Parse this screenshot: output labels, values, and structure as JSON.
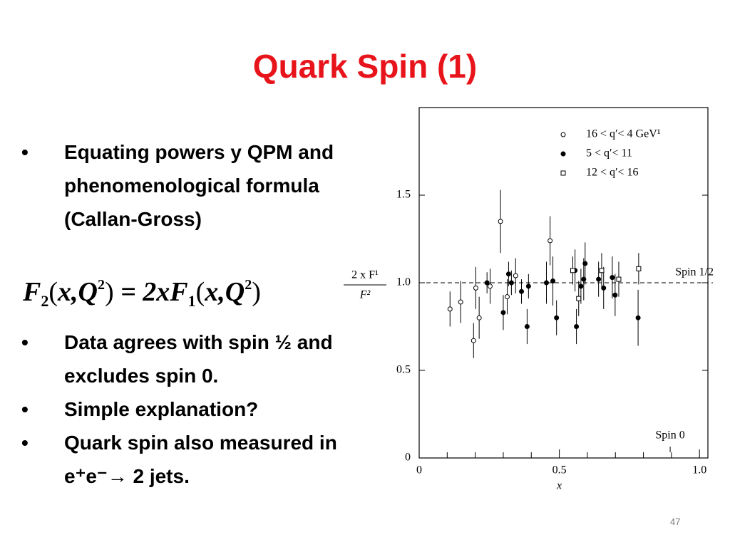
{
  "slide": {
    "title": "Quark Spin (1)",
    "bullets_top": [
      "Equating powers y QPM and phenomenological formula (Callan-Gross)"
    ],
    "formula": [
      {
        "text": "F",
        "style": "normal"
      },
      {
        "text": "2",
        "style": "sub"
      },
      {
        "text": "(",
        "style": "paren"
      },
      {
        "text": "x",
        "style": "normal"
      },
      {
        "text": ",",
        "style": "normal"
      },
      {
        "text": "Q",
        "style": "normal"
      },
      {
        "text": "2",
        "style": "sup"
      },
      {
        "text": ")",
        "style": "paren"
      },
      {
        "text": " = 2",
        "style": "normal"
      },
      {
        "text": "xF",
        "style": "normal"
      },
      {
        "text": "1",
        "style": "sub"
      },
      {
        "text": "(",
        "style": "paren"
      },
      {
        "text": "x",
        "style": "normal"
      },
      {
        "text": ",",
        "style": "normal"
      },
      {
        "text": "Q",
        "style": "normal"
      },
      {
        "text": "2",
        "style": "sup"
      },
      {
        "text": ")",
        "style": "paren"
      }
    ],
    "bullets_bottom": [
      "Data agrees with spin ½ and excludes spin 0.",
      "Simple explanation?",
      "Quark spin also measured in e⁺e⁻→ 2 jets."
    ],
    "page_number": "47"
  },
  "chart_data": {
    "type": "scatter",
    "xlabel": "x",
    "ylabel_top": "2 x F¹",
    "ylabel_bottom": "F²",
    "xlim": [
      0,
      1.03
    ],
    "ylim": [
      0,
      2.0
    ],
    "xticks": [
      0,
      0.5,
      {
        "value": 1.0,
        "label": "1.0"
      }
    ],
    "x_minor_ticks": [
      0.1,
      0.2,
      0.3,
      0.4,
      0.6,
      0.7,
      0.8,
      0.9
    ],
    "yticks": [
      0,
      0.5,
      {
        "value": 1.0,
        "label": "1.0"
      },
      1.5
    ],
    "reference_line": 1.0,
    "annotations": [
      {
        "text": "Spin 1/2",
        "x": 0.87,
        "y": 1.0
      },
      {
        "text": "Spin 0",
        "x": 0.87,
        "y": 0
      }
    ],
    "series": [
      {
        "name": "16 < q′< 4 GeV¹",
        "marker": "open-circle",
        "color": "#000000",
        "x": [
          0.11,
          0.148,
          0.194,
          0.202,
          0.214,
          0.253,
          0.29,
          0.314,
          0.344,
          0.467
        ],
        "values": [
          0.85,
          0.89,
          0.67,
          0.97,
          0.8,
          0.98,
          1.35,
          0.92,
          1.04,
          1.24
        ],
        "errors": [
          0.1,
          0.12,
          0.1,
          0.12,
          0.12,
          0.1,
          0.18,
          0.1,
          0.1,
          0.14
        ]
      },
      {
        "name": "5 < q′< 11",
        "marker": "filled-circle",
        "color": "#000000",
        "x": [
          0.242,
          0.3,
          0.319,
          0.329,
          0.365,
          0.385,
          0.39,
          0.454,
          0.477,
          0.49,
          0.556,
          0.561,
          0.577,
          0.587,
          0.592,
          0.64,
          0.658,
          0.689,
          0.699,
          0.781
        ],
        "values": [
          1.0,
          0.83,
          1.05,
          1.0,
          0.95,
          0.75,
          0.98,
          1.0,
          1.01,
          0.8,
          1.07,
          0.75,
          0.98,
          1.02,
          1.11,
          1.02,
          0.97,
          1.03,
          0.93,
          0.8
        ],
        "errors": [
          0.06,
          0.1,
          0.07,
          0.07,
          0.07,
          0.1,
          0.07,
          0.12,
          0.14,
          0.1,
          0.12,
          0.1,
          0.1,
          0.12,
          0.12,
          0.1,
          0.12,
          0.12,
          0.12,
          0.16
        ]
      },
      {
        "name": "12 < q′< 16",
        "marker": "open-square",
        "color": "#000000",
        "x": [
          0.548,
          0.569,
          0.651,
          0.712,
          0.783
        ],
        "values": [
          1.07,
          0.91,
          1.07,
          1.02,
          1.08
        ],
        "errors": [
          0.08,
          0.1,
          0.1,
          0.1,
          0.09
        ]
      }
    ]
  }
}
